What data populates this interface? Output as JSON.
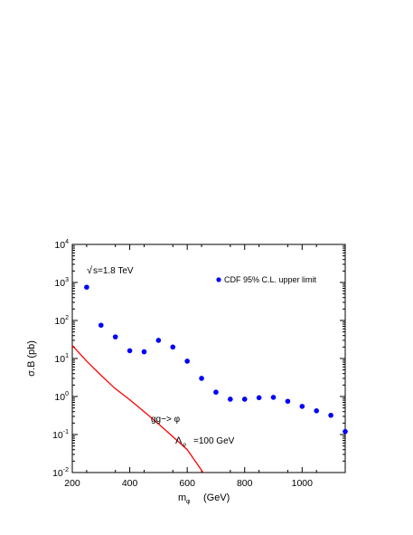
{
  "chart_data": {
    "type": "scatter",
    "xlabel_main": "m",
    "xlabel_sub": "φ",
    "xlabel_unit": "(GeV)",
    "ylabel": "σ.B   (pb)",
    "xlim": [
      200,
      1150
    ],
    "ylim": [
      0.01,
      10000
    ],
    "y_scale": "log",
    "x_ticks": [
      200,
      400,
      600,
      800,
      1000
    ],
    "y_ticks": [
      {
        "value": 10000,
        "base": "10",
        "exp": "4"
      },
      {
        "value": 1000,
        "base": "10",
        "exp": "3"
      },
      {
        "value": 100,
        "base": "10",
        "exp": "2"
      },
      {
        "value": 10,
        "base": "10",
        "exp": "1"
      },
      {
        "value": 1,
        "base": "10",
        "exp": "0"
      },
      {
        "value": 0.1,
        "base": "10",
        "exp": "-1"
      },
      {
        "value": 0.01,
        "base": "10",
        "exp": "-2"
      }
    ],
    "legend_position": "top-right",
    "series": [
      {
        "name": "CDF 95% C.L. upper limit",
        "kind": "points",
        "color": "#0000ff",
        "x": [
          250,
          300,
          350,
          400,
          450,
          500,
          550,
          600,
          650,
          700,
          750,
          800,
          850,
          900,
          950,
          1000,
          1050,
          1100,
          1150
        ],
        "y": [
          750,
          75,
          37,
          16,
          15,
          30,
          20,
          8.5,
          3.0,
          1.3,
          0.85,
          0.85,
          0.93,
          0.95,
          0.75,
          0.55,
          0.42,
          0.32,
          0.12
        ]
      },
      {
        "kind": "line",
        "color": "#ff0000",
        "x": [
          200,
          250,
          300,
          350,
          400,
          450,
          500,
          550,
          600,
          650,
          655
        ],
        "y": [
          22,
          8.5,
          3.6,
          1.6,
          0.82,
          0.4,
          0.19,
          0.088,
          0.04,
          0.0115,
          0.01
        ]
      }
    ],
    "annotations": {
      "sqrt_symbol": "√",
      "energy": "s=1.8 TeV",
      "process": "gg−> φ",
      "lambda_symbol": "Λ",
      "lambda_sub": "φ",
      "lambda_value": "=100 GeV"
    }
  }
}
